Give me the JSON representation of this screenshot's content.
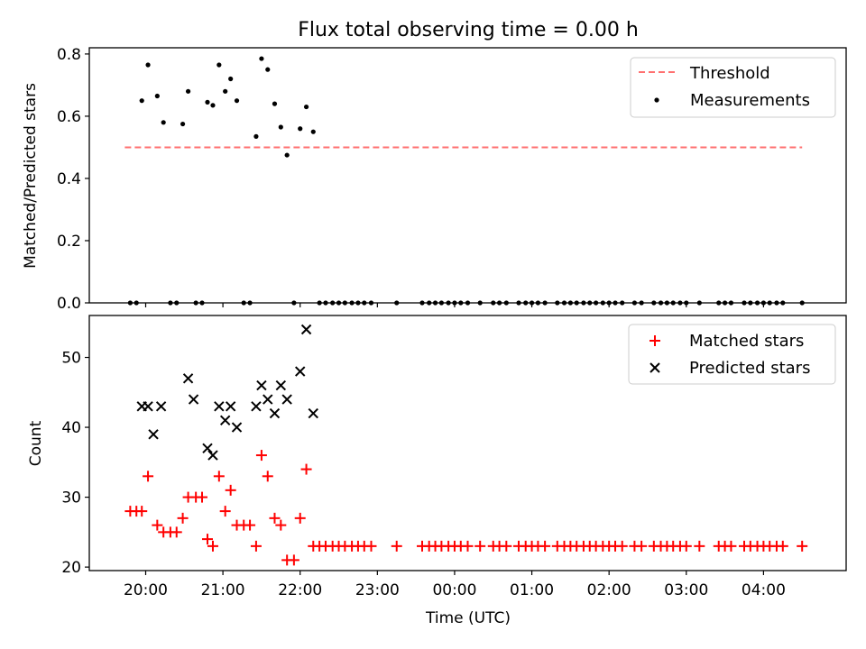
{
  "figure": {
    "title": "Flux total observing time = 0.00 h"
  },
  "chart_data": [
    {
      "type": "scatter",
      "panel": "top",
      "ylabel": "Matched/Predicted stars",
      "xlabel": "",
      "x_unit": "hours after 00:00 UTC (negative = previous day)",
      "xlim": [
        -4.73,
        5.07
      ],
      "ylim": [
        0,
        0.82
      ],
      "yticks": [
        "0.0",
        "0.2",
        "0.4",
        "0.6",
        "0.8"
      ],
      "legend_position": "top-right",
      "legend": [
        {
          "label": "Threshold",
          "kind": "dashed-line",
          "color": "#ff7070"
        },
        {
          "label": "Measurements",
          "kind": "dot",
          "color": "#000000"
        }
      ],
      "threshold": {
        "y": 0.5,
        "x_start": -4.27,
        "x_end": 4.5,
        "color": "#ff7070"
      },
      "measurements": [
        {
          "x": -4.2,
          "y": 0.0
        },
        {
          "x": -4.12,
          "y": 0.0
        },
        {
          "x": -4.05,
          "y": 0.65
        },
        {
          "x": -3.97,
          "y": 0.765
        },
        {
          "x": -3.85,
          "y": 0.665
        },
        {
          "x": -3.77,
          "y": 0.58
        },
        {
          "x": -3.68,
          "y": 0.0
        },
        {
          "x": -3.6,
          "y": 0.0
        },
        {
          "x": -3.52,
          "y": 0.575
        },
        {
          "x": -3.45,
          "y": 0.68
        },
        {
          "x": -3.35,
          "y": 0.0
        },
        {
          "x": -3.27,
          "y": 0.0
        },
        {
          "x": -3.2,
          "y": 0.645
        },
        {
          "x": -3.13,
          "y": 0.635
        },
        {
          "x": -3.05,
          "y": 0.765
        },
        {
          "x": -2.97,
          "y": 0.68
        },
        {
          "x": -2.9,
          "y": 0.72
        },
        {
          "x": -2.82,
          "y": 0.65
        },
        {
          "x": -2.73,
          "y": 0.0
        },
        {
          "x": -2.65,
          "y": 0.0
        },
        {
          "x": -2.57,
          "y": 0.535
        },
        {
          "x": -2.5,
          "y": 0.785
        },
        {
          "x": -2.42,
          "y": 0.75
        },
        {
          "x": -2.33,
          "y": 0.64
        },
        {
          "x": -2.25,
          "y": 0.565
        },
        {
          "x": -2.17,
          "y": 0.475
        },
        {
          "x": -2.08,
          "y": 0.0
        },
        {
          "x": -2.0,
          "y": 0.56
        },
        {
          "x": -1.92,
          "y": 0.63
        },
        {
          "x": -1.83,
          "y": 0.55
        },
        {
          "x": -1.75,
          "y": 0.0
        },
        {
          "x": -1.67,
          "y": 0.0
        },
        {
          "x": -1.58,
          "y": 0.0
        },
        {
          "x": -1.5,
          "y": 0.0
        },
        {
          "x": -1.42,
          "y": 0.0
        },
        {
          "x": -1.33,
          "y": 0.0
        },
        {
          "x": -1.25,
          "y": 0.0
        },
        {
          "x": -1.17,
          "y": 0.0
        },
        {
          "x": -1.08,
          "y": 0.0
        },
        {
          "x": -0.75,
          "y": 0.0
        },
        {
          "x": -0.42,
          "y": 0.0
        },
        {
          "x": -0.33,
          "y": 0.0
        },
        {
          "x": -0.25,
          "y": 0.0
        },
        {
          "x": -0.17,
          "y": 0.0
        },
        {
          "x": -0.08,
          "y": 0.0
        },
        {
          "x": 0.0,
          "y": 0.0
        },
        {
          "x": 0.08,
          "y": 0.0
        },
        {
          "x": 0.17,
          "y": 0.0
        },
        {
          "x": 0.33,
          "y": 0.0
        },
        {
          "x": 0.5,
          "y": 0.0
        },
        {
          "x": 0.58,
          "y": 0.0
        },
        {
          "x": 0.67,
          "y": 0.0
        },
        {
          "x": 0.83,
          "y": 0.0
        },
        {
          "x": 0.92,
          "y": 0.0
        },
        {
          "x": 1.0,
          "y": 0.0
        },
        {
          "x": 1.08,
          "y": 0.0
        },
        {
          "x": 1.17,
          "y": 0.0
        },
        {
          "x": 1.33,
          "y": 0.0
        },
        {
          "x": 1.42,
          "y": 0.0
        },
        {
          "x": 1.5,
          "y": 0.0
        },
        {
          "x": 1.58,
          "y": 0.0
        },
        {
          "x": 1.67,
          "y": 0.0
        },
        {
          "x": 1.75,
          "y": 0.0
        },
        {
          "x": 1.83,
          "y": 0.0
        },
        {
          "x": 1.92,
          "y": 0.0
        },
        {
          "x": 2.0,
          "y": 0.0
        },
        {
          "x": 2.08,
          "y": 0.0
        },
        {
          "x": 2.17,
          "y": 0.0
        },
        {
          "x": 2.33,
          "y": 0.0
        },
        {
          "x": 2.42,
          "y": 0.0
        },
        {
          "x": 2.58,
          "y": 0.0
        },
        {
          "x": 2.67,
          "y": 0.0
        },
        {
          "x": 2.75,
          "y": 0.0
        },
        {
          "x": 2.83,
          "y": 0.0
        },
        {
          "x": 2.92,
          "y": 0.0
        },
        {
          "x": 3.0,
          "y": 0.0
        },
        {
          "x": 3.17,
          "y": 0.0
        },
        {
          "x": 3.42,
          "y": 0.0
        },
        {
          "x": 3.5,
          "y": 0.0
        },
        {
          "x": 3.58,
          "y": 0.0
        },
        {
          "x": 3.75,
          "y": 0.0
        },
        {
          "x": 3.83,
          "y": 0.0
        },
        {
          "x": 3.92,
          "y": 0.0
        },
        {
          "x": 4.0,
          "y": 0.0
        },
        {
          "x": 4.08,
          "y": 0.0
        },
        {
          "x": 4.17,
          "y": 0.0
        },
        {
          "x": 4.25,
          "y": 0.0
        },
        {
          "x": 4.5,
          "y": 0.0
        }
      ]
    },
    {
      "type": "scatter",
      "panel": "bottom",
      "xlabel": "Time (UTC)",
      "ylabel": "Count",
      "x_unit": "hours after 00:00 UTC (negative = previous day)",
      "xlim": [
        -4.73,
        5.07
      ],
      "ylim": [
        19.5,
        56.0
      ],
      "xticks": [
        {
          "x": -4,
          "label": "20:00"
        },
        {
          "x": -3,
          "label": "21:00"
        },
        {
          "x": -2,
          "label": "22:00"
        },
        {
          "x": -1,
          "label": "23:00"
        },
        {
          "x": 0,
          "label": "00:00"
        },
        {
          "x": 1,
          "label": "01:00"
        },
        {
          "x": 2,
          "label": "02:00"
        },
        {
          "x": 3,
          "label": "03:00"
        },
        {
          "x": 4,
          "label": "04:00"
        }
      ],
      "yticks": [
        "20",
        "30",
        "40",
        "50"
      ],
      "legend_position": "top-right",
      "series": [
        {
          "name": "Matched stars",
          "marker": "plus",
          "color": "#ff0000",
          "points": [
            {
              "x": -4.2,
              "y": 28
            },
            {
              "x": -4.12,
              "y": 28
            },
            {
              "x": -4.05,
              "y": 28
            },
            {
              "x": -3.97,
              "y": 33
            },
            {
              "x": -3.85,
              "y": 26
            },
            {
              "x": -3.77,
              "y": 25
            },
            {
              "x": -3.68,
              "y": 25
            },
            {
              "x": -3.6,
              "y": 25
            },
            {
              "x": -3.52,
              "y": 27
            },
            {
              "x": -3.45,
              "y": 30
            },
            {
              "x": -3.35,
              "y": 30
            },
            {
              "x": -3.27,
              "y": 30
            },
            {
              "x": -3.2,
              "y": 24
            },
            {
              "x": -3.13,
              "y": 23
            },
            {
              "x": -3.05,
              "y": 33
            },
            {
              "x": -2.97,
              "y": 28
            },
            {
              "x": -2.9,
              "y": 31
            },
            {
              "x": -2.82,
              "y": 26
            },
            {
              "x": -2.73,
              "y": 26
            },
            {
              "x": -2.65,
              "y": 26
            },
            {
              "x": -2.57,
              "y": 23
            },
            {
              "x": -2.5,
              "y": 36
            },
            {
              "x": -2.42,
              "y": 33
            },
            {
              "x": -2.33,
              "y": 27
            },
            {
              "x": -2.25,
              "y": 26
            },
            {
              "x": -2.17,
              "y": 21
            },
            {
              "x": -2.08,
              "y": 21
            },
            {
              "x": -2.0,
              "y": 27
            },
            {
              "x": -1.92,
              "y": 34
            },
            {
              "x": -1.83,
              "y": 23
            },
            {
              "x": -1.75,
              "y": 23
            },
            {
              "x": -1.67,
              "y": 23
            },
            {
              "x": -1.58,
              "y": 23
            },
            {
              "x": -1.5,
              "y": 23
            },
            {
              "x": -1.42,
              "y": 23
            },
            {
              "x": -1.33,
              "y": 23
            },
            {
              "x": -1.25,
              "y": 23
            },
            {
              "x": -1.17,
              "y": 23
            },
            {
              "x": -1.08,
              "y": 23
            },
            {
              "x": -0.75,
              "y": 23
            },
            {
              "x": -0.42,
              "y": 23
            },
            {
              "x": -0.33,
              "y": 23
            },
            {
              "x": -0.25,
              "y": 23
            },
            {
              "x": -0.17,
              "y": 23
            },
            {
              "x": -0.08,
              "y": 23
            },
            {
              "x": 0.0,
              "y": 23
            },
            {
              "x": 0.08,
              "y": 23
            },
            {
              "x": 0.17,
              "y": 23
            },
            {
              "x": 0.33,
              "y": 23
            },
            {
              "x": 0.5,
              "y": 23
            },
            {
              "x": 0.58,
              "y": 23
            },
            {
              "x": 0.67,
              "y": 23
            },
            {
              "x": 0.83,
              "y": 23
            },
            {
              "x": 0.92,
              "y": 23
            },
            {
              "x": 1.0,
              "y": 23
            },
            {
              "x": 1.08,
              "y": 23
            },
            {
              "x": 1.17,
              "y": 23
            },
            {
              "x": 1.33,
              "y": 23
            },
            {
              "x": 1.42,
              "y": 23
            },
            {
              "x": 1.5,
              "y": 23
            },
            {
              "x": 1.58,
              "y": 23
            },
            {
              "x": 1.67,
              "y": 23
            },
            {
              "x": 1.75,
              "y": 23
            },
            {
              "x": 1.83,
              "y": 23
            },
            {
              "x": 1.92,
              "y": 23
            },
            {
              "x": 2.0,
              "y": 23
            },
            {
              "x": 2.08,
              "y": 23
            },
            {
              "x": 2.17,
              "y": 23
            },
            {
              "x": 2.33,
              "y": 23
            },
            {
              "x": 2.42,
              "y": 23
            },
            {
              "x": 2.58,
              "y": 23
            },
            {
              "x": 2.67,
              "y": 23
            },
            {
              "x": 2.75,
              "y": 23
            },
            {
              "x": 2.83,
              "y": 23
            },
            {
              "x": 2.92,
              "y": 23
            },
            {
              "x": 3.0,
              "y": 23
            },
            {
              "x": 3.17,
              "y": 23
            },
            {
              "x": 3.42,
              "y": 23
            },
            {
              "x": 3.5,
              "y": 23
            },
            {
              "x": 3.58,
              "y": 23
            },
            {
              "x": 3.75,
              "y": 23
            },
            {
              "x": 3.83,
              "y": 23
            },
            {
              "x": 3.92,
              "y": 23
            },
            {
              "x": 4.0,
              "y": 23
            },
            {
              "x": 4.08,
              "y": 23
            },
            {
              "x": 4.17,
              "y": 23
            },
            {
              "x": 4.25,
              "y": 23
            },
            {
              "x": 4.5,
              "y": 23
            }
          ]
        },
        {
          "name": "Predicted stars",
          "marker": "x",
          "color": "#000000",
          "points": [
            {
              "x": -4.05,
              "y": 43
            },
            {
              "x": -3.97,
              "y": 43
            },
            {
              "x": -3.9,
              "y": 39
            },
            {
              "x": -3.8,
              "y": 43
            },
            {
              "x": -3.45,
              "y": 47
            },
            {
              "x": -3.38,
              "y": 44
            },
            {
              "x": -3.2,
              "y": 37
            },
            {
              "x": -3.13,
              "y": 36
            },
            {
              "x": -3.05,
              "y": 43
            },
            {
              "x": -2.97,
              "y": 41
            },
            {
              "x": -2.9,
              "y": 43
            },
            {
              "x": -2.82,
              "y": 40
            },
            {
              "x": -2.57,
              "y": 43
            },
            {
              "x": -2.5,
              "y": 46
            },
            {
              "x": -2.42,
              "y": 44
            },
            {
              "x": -2.33,
              "y": 42
            },
            {
              "x": -2.25,
              "y": 46
            },
            {
              "x": -2.17,
              "y": 44
            },
            {
              "x": -2.0,
              "y": 48
            },
            {
              "x": -1.92,
              "y": 54
            },
            {
              "x": -1.83,
              "y": 42
            }
          ]
        }
      ]
    }
  ]
}
